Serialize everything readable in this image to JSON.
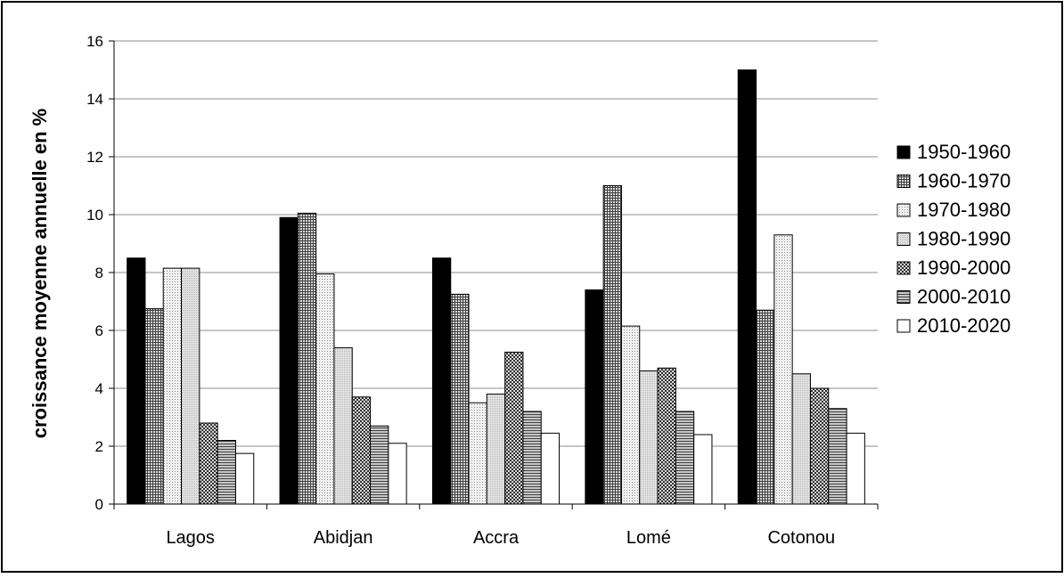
{
  "chart_data": {
    "type": "bar",
    "title": "",
    "xlabel": "",
    "ylabel": "croissance moyenne annuelle en %",
    "ylim": [
      0,
      16
    ],
    "yticks": [
      0,
      2,
      4,
      6,
      8,
      10,
      12,
      14,
      16
    ],
    "grid": true,
    "legend_position": "right",
    "categories": [
      "Lagos",
      "Abidjan",
      "Accra",
      "Lomé",
      "Cotonou"
    ],
    "series": [
      {
        "name": "1950-1960",
        "pattern": "solid-black",
        "values": [
          8.5,
          9.9,
          8.5,
          7.4,
          15.0
        ]
      },
      {
        "name": "1960-1970",
        "pattern": "dense-grid",
        "values": [
          6.75,
          10.05,
          7.25,
          11.0,
          6.7
        ]
      },
      {
        "name": "1970-1980",
        "pattern": "fine-dots",
        "values": [
          8.15,
          7.95,
          3.5,
          6.15,
          9.3
        ]
      },
      {
        "name": "1980-1990",
        "pattern": "light-dots",
        "values": [
          8.15,
          5.4,
          3.8,
          4.6,
          4.5
        ]
      },
      {
        "name": "1990-2000",
        "pattern": "checker",
        "values": [
          2.8,
          3.7,
          5.25,
          4.7,
          4.0
        ]
      },
      {
        "name": "2000-2010",
        "pattern": "horizontal-lines",
        "values": [
          2.2,
          2.7,
          3.2,
          3.2,
          3.3
        ]
      },
      {
        "name": "2010-2020",
        "pattern": "white",
        "values": [
          1.75,
          2.1,
          2.45,
          2.4,
          2.45
        ]
      }
    ]
  }
}
